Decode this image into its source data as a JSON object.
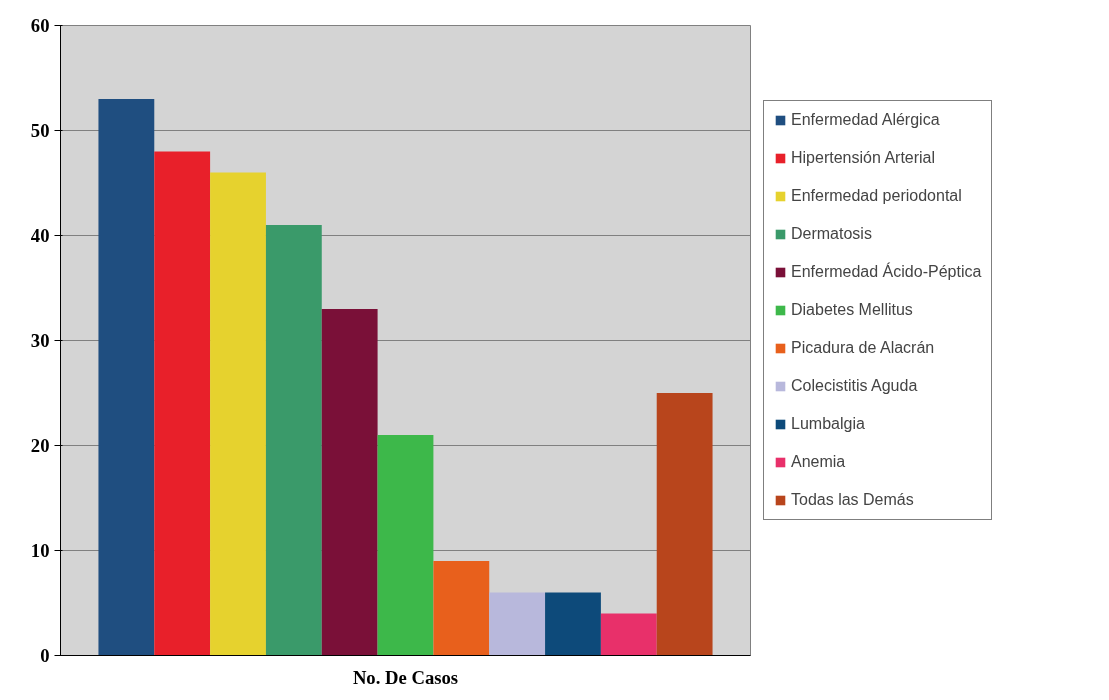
{
  "chart_data": {
    "type": "bar",
    "categories": [
      "No. De Casos"
    ],
    "series": [
      {
        "name": "Enfermedad Alérgica",
        "color": "#1f4e80",
        "values": [
          53
        ]
      },
      {
        "name": "Hipertensión Arterial",
        "color": "#e8202a",
        "values": [
          48
        ]
      },
      {
        "name": "Enfermedad periodontal",
        "color": "#e6d22e",
        "values": [
          46
        ]
      },
      {
        "name": "Dermatosis",
        "color": "#3a9a6a",
        "values": [
          41
        ]
      },
      {
        "name": "Enfermedad Ácido-Péptica",
        "color": "#7a1038",
        "values": [
          33
        ]
      },
      {
        "name": "Diabetes Mellitus",
        "color": "#3db84a",
        "values": [
          21
        ]
      },
      {
        "name": "Picadura de Alacrán",
        "color": "#e8601c",
        "values": [
          9
        ]
      },
      {
        "name": "Colecistitis Aguda",
        "color": "#b8b8dc",
        "values": [
          6
        ]
      },
      {
        "name": "Lumbalgia",
        "color": "#0d4a7a",
        "values": [
          6
        ]
      },
      {
        "name": "Anemia",
        "color": "#e8306a",
        "values": [
          4
        ]
      },
      {
        "name": "Todas las Demás",
        "color": "#b8451c",
        "values": [
          25
        ]
      }
    ],
    "ylim": [
      0,
      60
    ],
    "yticks": [
      0,
      10,
      20,
      30,
      40,
      50,
      60
    ],
    "grid": "y",
    "legend": "right"
  }
}
